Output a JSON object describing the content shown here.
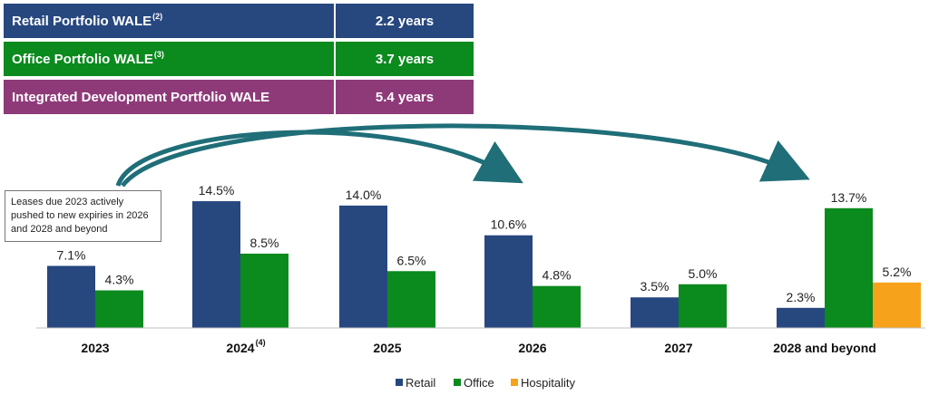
{
  "wale_table": [
    {
      "label": "Retail Portfolio WALE",
      "sup": "(2)",
      "value": "2.2 years",
      "color": "#27477f"
    },
    {
      "label": "Office Portfolio WALE",
      "sup": "(3)",
      "value": "3.7 years",
      "color": "#0b8a1e"
    },
    {
      "label": "Integrated Development Portfolio WALE",
      "sup": "",
      "value": "5.4 years",
      "color": "#8e3a79"
    }
  ],
  "note": "Leases due 2023 actively pushed to new expiries in 2026 and 2028 and beyond",
  "chart_data": {
    "type": "bar",
    "categories": [
      "2023",
      "2024",
      "2025",
      "2026",
      "2027",
      "2028 and beyond"
    ],
    "category_sups": [
      "",
      "(4)",
      "",
      "",
      "",
      ""
    ],
    "series": [
      {
        "name": "Retail",
        "color": "#27477f",
        "values": [
          7.1,
          14.5,
          14.0,
          10.6,
          3.5,
          2.3
        ],
        "labels": [
          "7.1%",
          "14.5%",
          "14.0%",
          "10.6%",
          "3.5%",
          "2.3%"
        ]
      },
      {
        "name": "Office",
        "color": "#0b8a1e",
        "values": [
          4.3,
          8.5,
          6.5,
          4.8,
          5.0,
          13.7
        ],
        "labels": [
          "4.3%",
          "8.5%",
          "6.5%",
          "4.8%",
          "5.0%",
          "13.7%"
        ]
      },
      {
        "name": "Hospitality",
        "color": "#f7a21b",
        "values": [
          null,
          null,
          null,
          null,
          null,
          5.2
        ],
        "labels": [
          "",
          "",
          "",
          "",
          "",
          "5.2%"
        ]
      }
    ],
    "legend_position": "bottom",
    "arrow_color": "#1f6e78",
    "grid": false
  }
}
